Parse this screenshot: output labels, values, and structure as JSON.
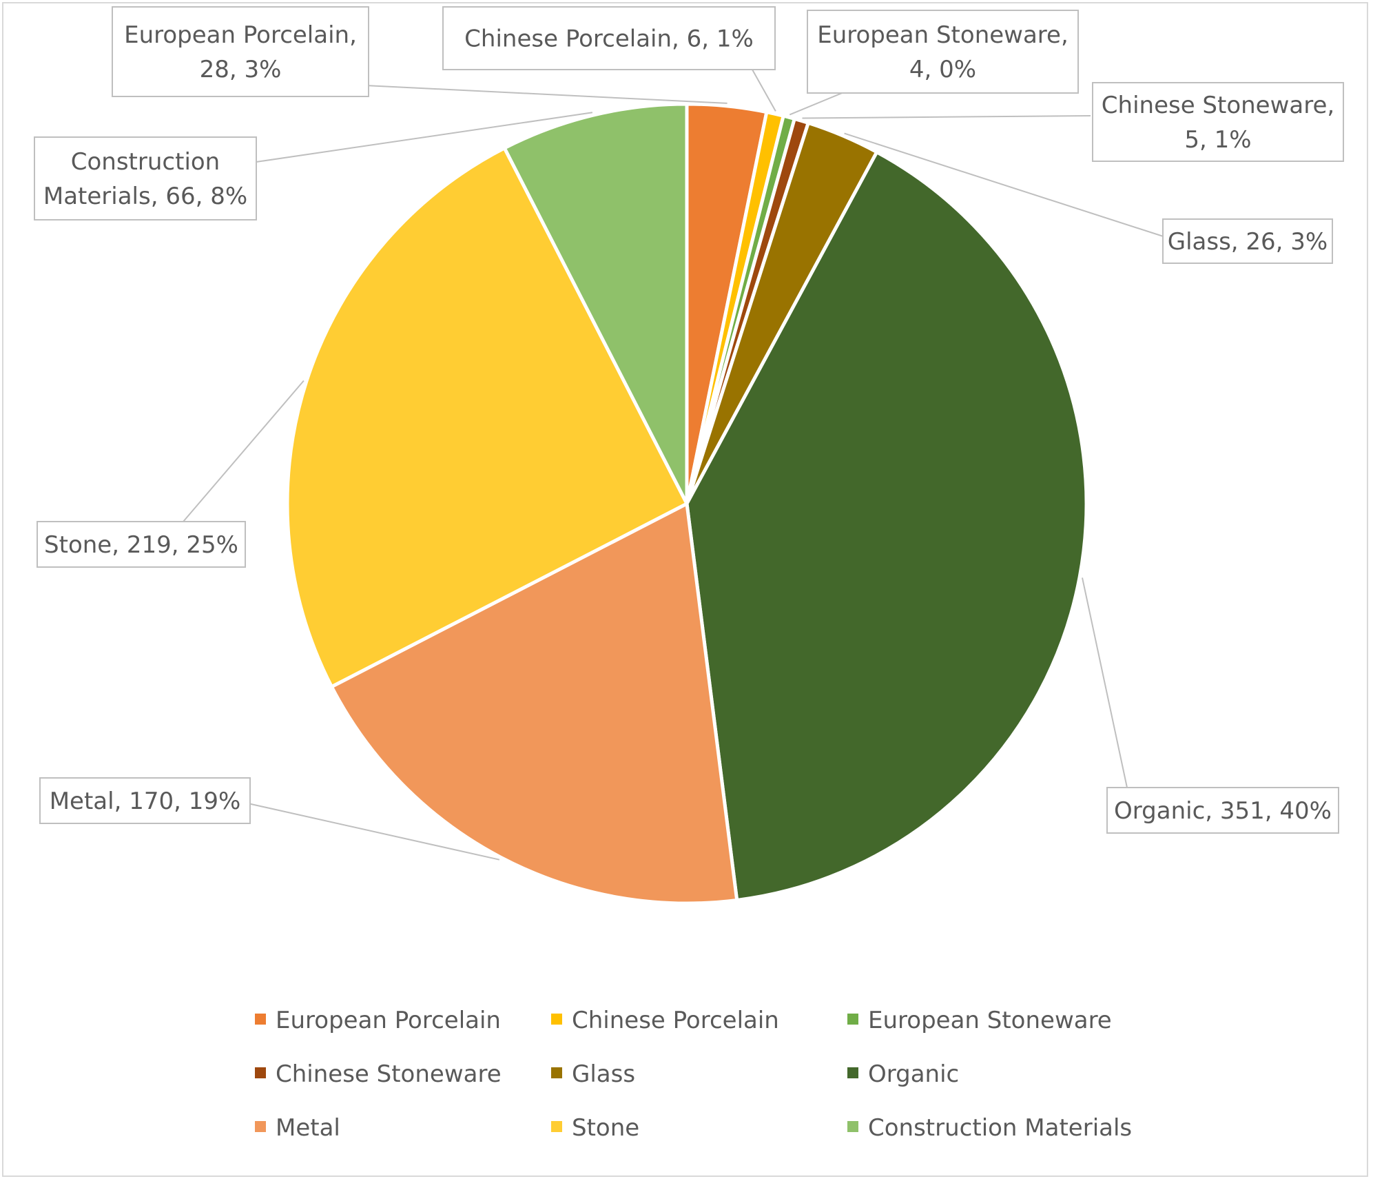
{
  "chart_data": {
    "type": "pie",
    "title": "",
    "legend_position": "bottom",
    "slices": [
      {
        "name": "European Porcelain",
        "value": 28,
        "percent": "3%",
        "color": "#ED7D31",
        "label_lines": [
          "European Porcelain,",
          "28, 3%"
        ]
      },
      {
        "name": "Chinese Porcelain",
        "value": 6,
        "percent": "1%",
        "color": "#FFC000",
        "label_lines": [
          "Chinese Porcelain, 6, 1%"
        ]
      },
      {
        "name": "European Stoneware",
        "value": 4,
        "percent": "0%",
        "color": "#70AD47",
        "label_lines": [
          "European Stoneware,",
          "4, 0%"
        ]
      },
      {
        "name": "Chinese Stoneware",
        "value": 5,
        "percent": "1%",
        "color": "#9E480E",
        "label_lines": [
          "Chinese Stoneware,",
          "5, 1%"
        ]
      },
      {
        "name": "Glass",
        "value": 26,
        "percent": "3%",
        "color": "#997300",
        "label_lines": [
          "Glass, 26, 3%"
        ]
      },
      {
        "name": "Organic",
        "value": 351,
        "percent": "40%",
        "color": "#43682B",
        "label_lines": [
          "Organic, 351, 40%"
        ]
      },
      {
        "name": "Metal",
        "value": 170,
        "percent": "19%",
        "color": "#F1975A",
        "label_lines": [
          "Metal, 170, 19%"
        ]
      },
      {
        "name": "Stone",
        "value": 219,
        "percent": "25%",
        "color": "#FFCD33",
        "label_lines": [
          "Stone, 219, 25%"
        ]
      },
      {
        "name": "Construction Materials",
        "value": 66,
        "percent": "8%",
        "color": "#8FC16A",
        "label_lines": [
          "Construction",
          "Materials, 66, 8%"
        ]
      }
    ]
  }
}
